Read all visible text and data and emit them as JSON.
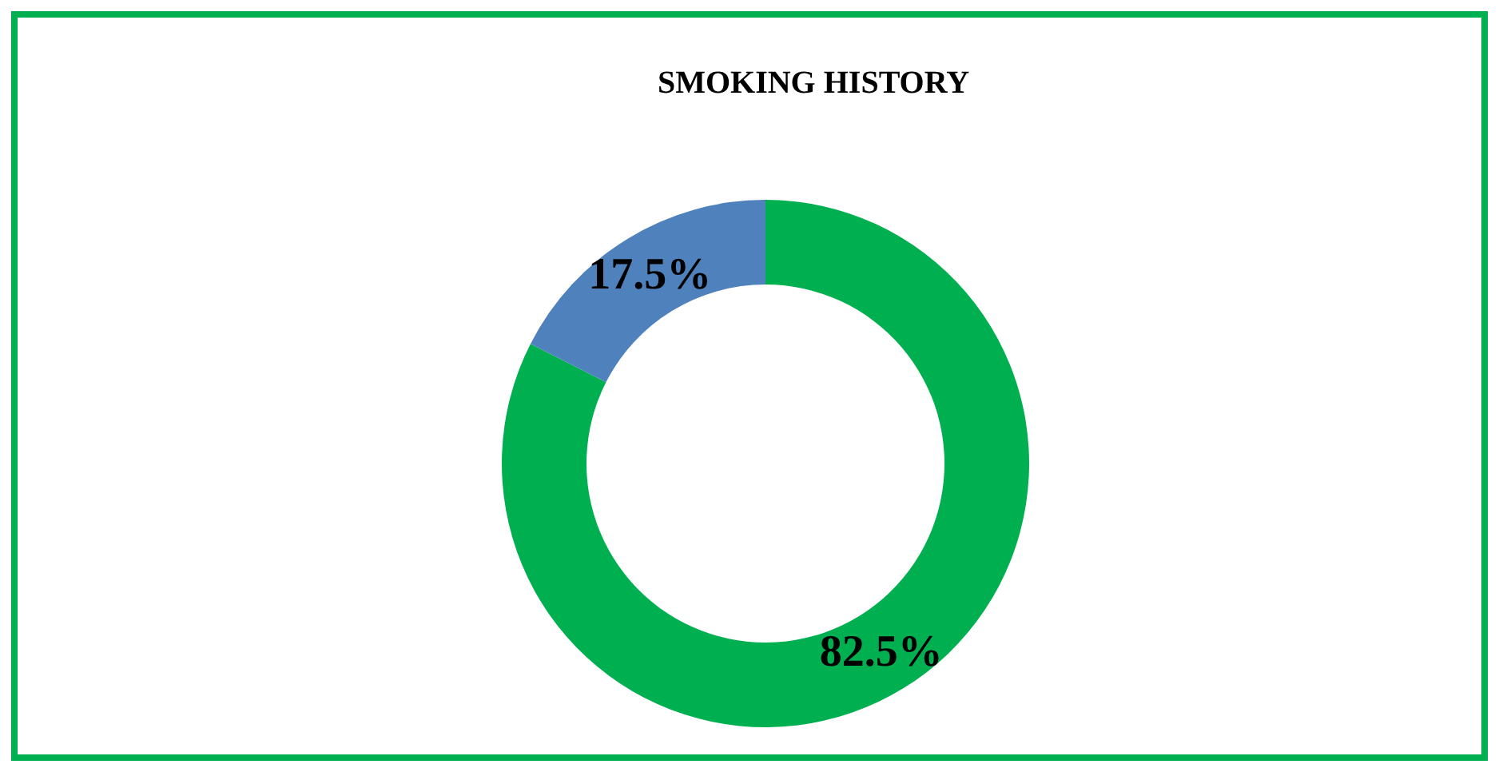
{
  "chart_data": {
    "type": "donut",
    "title": "SMOKING HISTORY",
    "categories": [
      null,
      null
    ],
    "values": [
      82.5,
      17.5
    ],
    "colors": [
      "#00b050",
      "#4f81bd"
    ],
    "value_labels": [
      "82.5%",
      "17.5%"
    ],
    "legend": false
  }
}
